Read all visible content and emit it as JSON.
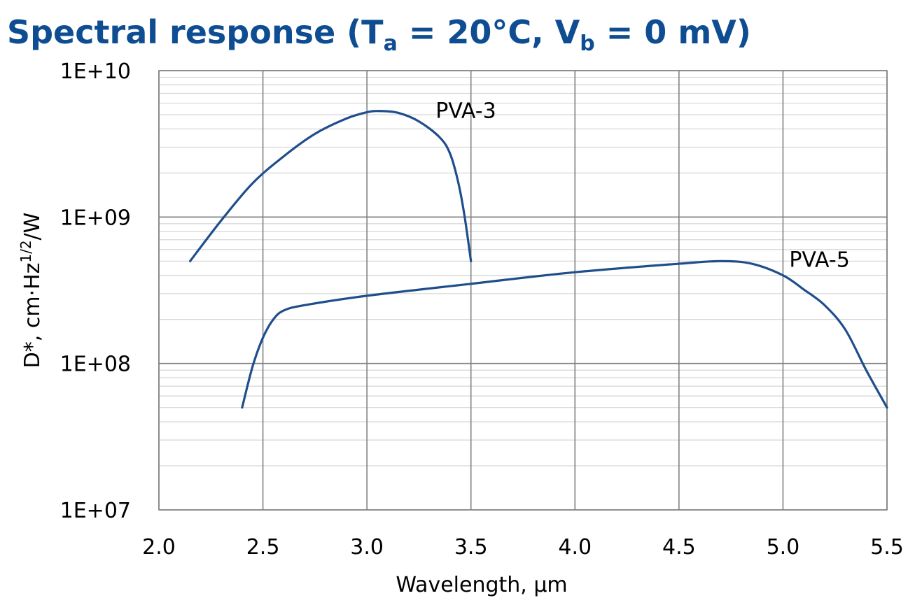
{
  "chart_data": {
    "type": "line",
    "title": {
      "main": "Spectral response (T",
      "sub1": "a",
      "mid": " = 20°C, V",
      "sub2": "b",
      "end": " = 0 mV)"
    },
    "xlabel": "Wavelength, µm",
    "ylabel": {
      "prefix": "D*, cm·Hz",
      "sup": "1/2",
      "suffix": "/W"
    },
    "x_scale": "linear",
    "y_scale": "log",
    "xlim": [
      2.0,
      5.5
    ],
    "ylim": [
      10000000,
      10000000000
    ],
    "x_ticks": [
      2.0,
      2.5,
      3.0,
      3.5,
      4.0,
      4.5,
      5.0,
      5.5
    ],
    "x_tick_labels": [
      "2.0",
      "2.5",
      "3.0",
      "3.5",
      "4.0",
      "4.5",
      "5.0",
      "5.5"
    ],
    "y_ticks": [
      10000000,
      100000000,
      1000000000,
      10000000000
    ],
    "y_tick_labels": [
      "1E+07",
      "1E+08",
      "1E+09",
      "1E+10"
    ],
    "grid": true,
    "series": [
      {
        "name": "PVA-3",
        "color": "#1f4e8c",
        "label_at": [
          3.33,
          5300000000
        ],
        "points": [
          [
            2.15,
            500000000
          ],
          [
            2.3,
            950000000
          ],
          [
            2.45,
            1700000000
          ],
          [
            2.6,
            2600000000
          ],
          [
            2.75,
            3700000000
          ],
          [
            2.9,
            4700000000
          ],
          [
            3.0,
            5200000000
          ],
          [
            3.06,
            5300000000
          ],
          [
            3.15,
            5150000000
          ],
          [
            3.25,
            4500000000
          ],
          [
            3.35,
            3500000000
          ],
          [
            3.4,
            2700000000
          ],
          [
            3.44,
            1700000000
          ],
          [
            3.47,
            1000000000
          ],
          [
            3.5,
            500000000
          ]
        ]
      },
      {
        "name": "PVA-5",
        "color": "#1f4e8c",
        "label_at": [
          5.03,
          510000000
        ],
        "points": [
          [
            2.4,
            50000000
          ],
          [
            2.45,
            95000000
          ],
          [
            2.5,
            150000000
          ],
          [
            2.55,
            200000000
          ],
          [
            2.6,
            230000000
          ],
          [
            2.7,
            250000000
          ],
          [
            3.0,
            290000000
          ],
          [
            3.5,
            350000000
          ],
          [
            4.0,
            420000000
          ],
          [
            4.5,
            480000000
          ],
          [
            4.7,
            500000000
          ],
          [
            4.85,
            480000000
          ],
          [
            5.0,
            400000000
          ],
          [
            5.1,
            320000000
          ],
          [
            5.2,
            250000000
          ],
          [
            5.3,
            170000000
          ],
          [
            5.4,
            90000000
          ],
          [
            5.5,
            50000000
          ]
        ]
      }
    ]
  }
}
